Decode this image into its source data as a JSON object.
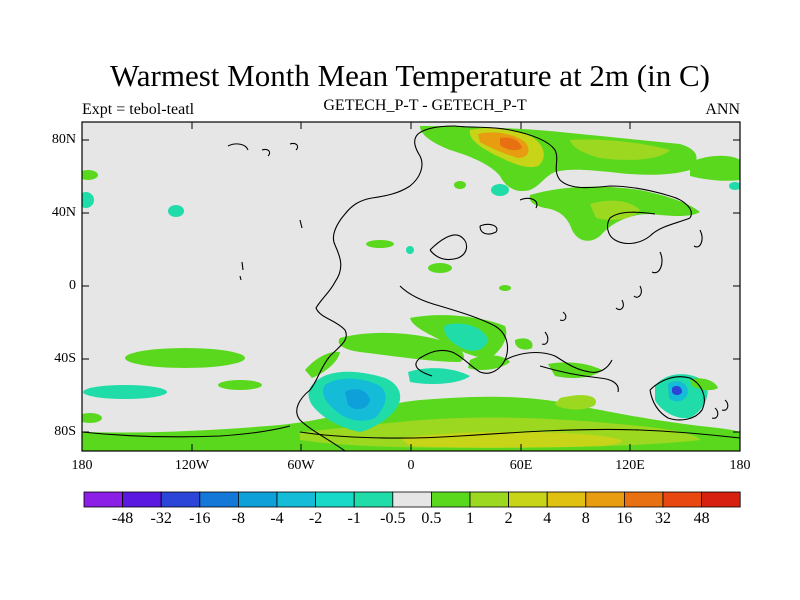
{
  "title": "Warmest Month Mean Temperature at 2m (in C)",
  "subtitle_left": "Expt = tebol-teatl",
  "subtitle_center": "GETECH_P-T - GETECH_P-T",
  "subtitle_right": "ANN",
  "lat_labels": [
    "80N",
    "40N",
    "0",
    "40S",
    "80S"
  ],
  "lon_labels": [
    "180",
    "120W",
    "60W",
    "0",
    "60E",
    "120E",
    "180"
  ],
  "colorbar": {
    "colors": [
      "#8b1fe6",
      "#5a18e0",
      "#2a45d8",
      "#1478d8",
      "#0ea0d8",
      "#14bcd8",
      "#18d8c8",
      "#20dca8",
      "#e6e6e6",
      "#5ad81e",
      "#9cd820",
      "#c8d418",
      "#e0c010",
      "#e89c10",
      "#e87010",
      "#e84810",
      "#d82010"
    ],
    "labels": [
      "-48",
      "-32",
      "-16",
      "-8",
      "-4",
      "-2",
      "-1",
      "-0.5",
      "0.5",
      "1",
      "2",
      "4",
      "8",
      "16",
      "32",
      "48"
    ]
  }
}
